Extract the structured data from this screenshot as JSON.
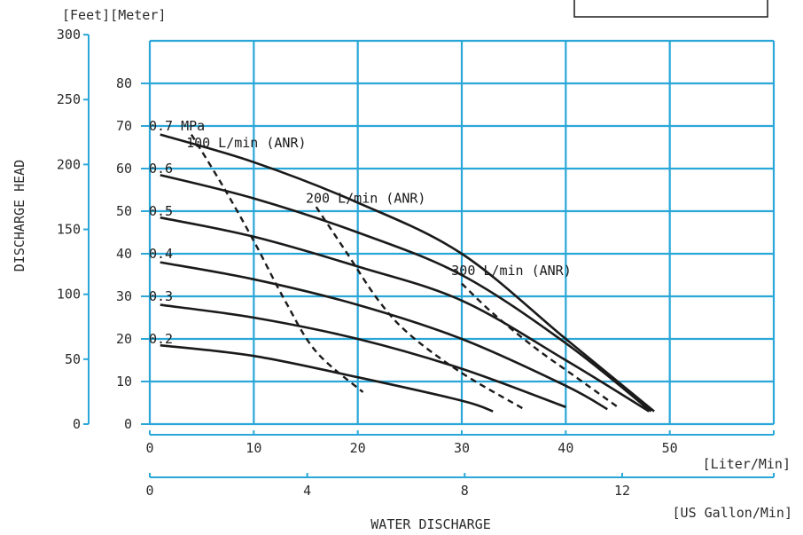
{
  "chart_data": {
    "type": "line",
    "title": "",
    "units_label": "[Feet][Meter]",
    "ylabel": "DISCHARGE HEAD",
    "xlabel": "WATER DISCHARGE",
    "x_unit_primary": "[Liter/Min]",
    "x_unit_secondary": "[US Gallon/Min]",
    "xlim": [
      0,
      60
    ],
    "ylim_meter": [
      0,
      90
    ],
    "x_ticks": [
      0,
      10,
      20,
      30,
      40,
      50
    ],
    "x_tick_labels": [
      "0",
      "10",
      "20",
      "30",
      "40",
      "50"
    ],
    "x2_ticks_usgal": [
      0,
      4,
      8,
      12
    ],
    "x2_tick_labels": [
      "0",
      "4",
      "8",
      "12"
    ],
    "y_meter_ticks": [
      0,
      10,
      20,
      30,
      40,
      50,
      60,
      70,
      80
    ],
    "y_meter_tick_labels": [
      "0",
      "10",
      "20",
      "30",
      "40",
      "50",
      "60",
      "70",
      "80"
    ],
    "y_feet_ticks": [
      0,
      50,
      100,
      150,
      200,
      250,
      300
    ],
    "y_feet_tick_labels": [
      "0",
      "50",
      "100",
      "150",
      "200",
      "250",
      "300"
    ],
    "grid": true,
    "series": [
      {
        "name": "0.7 MPa",
        "kind": "pressure",
        "x": [
          1,
          10,
          20,
          30,
          40,
          48.5
        ],
        "y": [
          68,
          61.5,
          52,
          40,
          20,
          3
        ],
        "label_at": [
          0,
          70
        ]
      },
      {
        "name": "0.6",
        "kind": "pressure",
        "x": [
          1,
          10,
          20,
          30,
          40,
          48.2
        ],
        "y": [
          58.5,
          53,
          45,
          35,
          19,
          3
        ],
        "label_at": [
          0,
          60
        ]
      },
      {
        "name": "0.5",
        "kind": "pressure",
        "x": [
          1,
          10,
          20,
          30,
          40,
          48
        ],
        "y": [
          48.5,
          44,
          37,
          29,
          15,
          3
        ],
        "label_at": [
          0,
          50
        ]
      },
      {
        "name": "0.4",
        "kind": "pressure",
        "x": [
          1,
          10,
          20,
          30,
          40,
          44
        ],
        "y": [
          38,
          34,
          28,
          20,
          9,
          3.5
        ],
        "label_at": [
          0,
          40
        ]
      },
      {
        "name": "0.3",
        "kind": "pressure",
        "x": [
          1,
          10,
          20,
          30,
          40
        ],
        "y": [
          28,
          25,
          20,
          13,
          4
        ],
        "label_at": [
          0,
          30
        ]
      },
      {
        "name": "0.2",
        "kind": "pressure",
        "x": [
          1,
          10,
          20,
          30,
          33
        ],
        "y": [
          18.5,
          16,
          11,
          5.5,
          3
        ],
        "label_at": [
          0,
          20
        ]
      }
    ],
    "air_consumption": [
      {
        "name": "100 L/min (ANR)",
        "x": [
          4,
          7,
          10,
          13,
          16,
          20.5
        ],
        "y": [
          68,
          56,
          43,
          29,
          17,
          7.5
        ],
        "label_at": [
          3.5,
          66
        ]
      },
      {
        "name": "200 L/min (ANR)",
        "x": [
          16,
          19,
          22,
          25,
          30,
          36
        ],
        "y": [
          51,
          40,
          29,
          21,
          12,
          3.5
        ],
        "label_at": [
          15,
          53
        ]
      },
      {
        "name": "300 L/min (ANR)",
        "x": [
          30,
          33,
          37,
          41,
          45
        ],
        "y": [
          33,
          26,
          18,
          11,
          4
        ],
        "label_at": [
          29,
          36
        ]
      }
    ]
  }
}
